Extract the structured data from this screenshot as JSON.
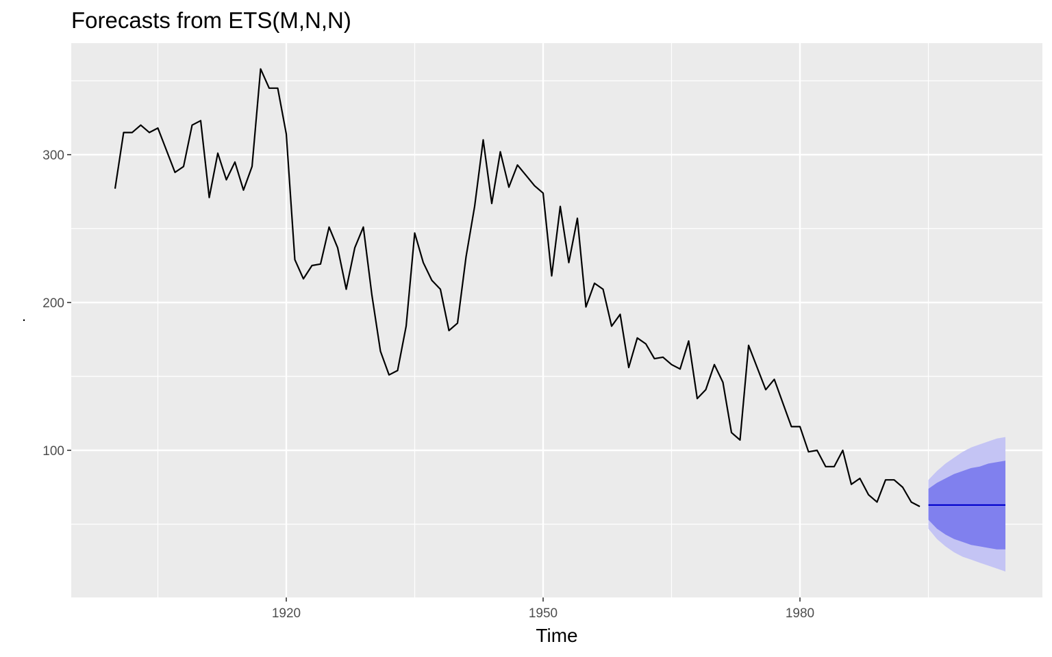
{
  "chart_data": {
    "type": "line",
    "title": "Forecasts from ETS(M,N,N)",
    "xlabel": "Time",
    "ylabel": ".",
    "xlim": [
      1895,
      2009
    ],
    "ylim": [
      0,
      375
    ],
    "x_major_ticks": [
      1920,
      1950,
      1980
    ],
    "x_tick_labels": [
      "1920",
      "1950",
      "1980"
    ],
    "y_major_ticks": [
      100,
      200,
      300
    ],
    "y_tick_labels": [
      "100",
      "200",
      "300"
    ],
    "grid": true,
    "colors": {
      "panel": "#ebebeb",
      "grid": "#ffffff",
      "series": "#000000",
      "forecast": "#0000cc",
      "pi80": "#8080ee",
      "pi95": "#c4c4f4"
    },
    "series": {
      "start": 1900,
      "values": [
        277,
        315,
        315,
        320,
        315,
        318,
        303,
        288,
        292,
        320,
        323,
        271,
        301,
        283,
        295,
        276,
        292,
        358,
        345,
        345,
        314,
        229,
        216,
        225,
        226,
        251,
        237,
        209,
        237,
        251,
        205,
        167,
        151,
        154,
        184,
        247,
        227,
        215,
        209,
        181,
        186,
        231,
        265,
        310,
        267,
        302,
        278,
        293,
        286,
        279,
        274,
        218,
        265,
        227,
        257,
        197,
        213,
        209,
        184,
        192,
        156,
        176,
        172,
        162,
        163,
        158,
        155,
        174,
        135,
        141,
        158,
        146,
        112,
        107,
        171,
        156,
        141,
        148,
        132,
        116,
        116,
        99,
        100,
        89,
        89,
        100,
        77,
        81,
        70,
        65,
        80,
        80,
        75,
        65,
        62
      ]
    },
    "forecast": {
      "x_start": 1995,
      "x_end": 2004,
      "mean": 63,
      "lo80": [
        53,
        47,
        43,
        40,
        38,
        36,
        35,
        34,
        33,
        33
      ],
      "hi80": [
        74,
        78,
        81,
        84,
        86,
        88,
        89,
        91,
        92,
        93
      ],
      "lo95": [
        47,
        40,
        35,
        31,
        28,
        26,
        24,
        22,
        20,
        18
      ],
      "hi95": [
        80,
        86,
        91,
        95,
        99,
        102,
        104,
        106,
        108,
        109
      ]
    }
  }
}
